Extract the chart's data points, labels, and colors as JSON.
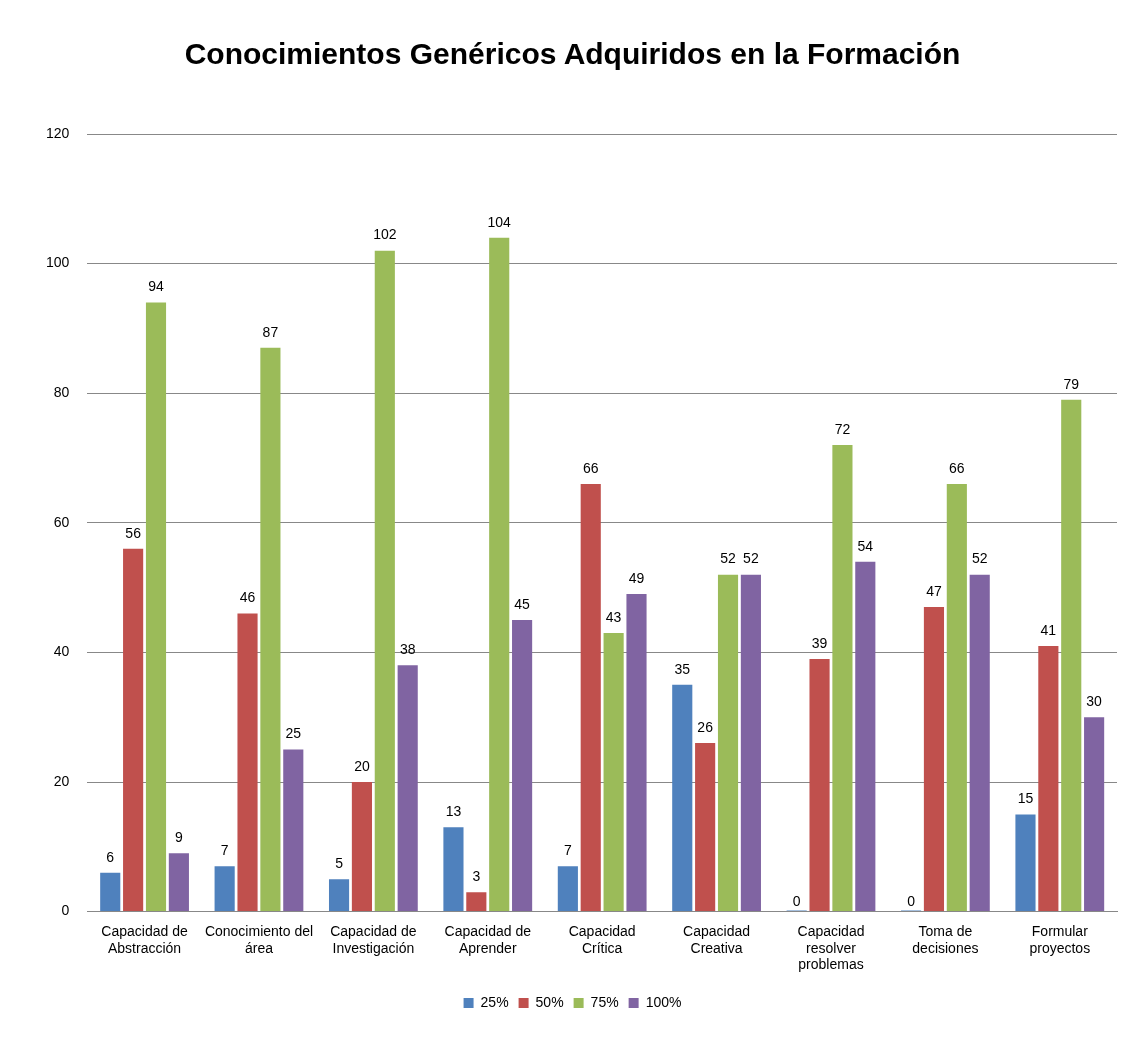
{
  "chart_data": {
    "type": "bar",
    "title": "Conocimientos Genéricos Adquiridos en la Formación",
    "categories": [
      "Capacidad de Abstracción",
      "Conocimiento del área",
      "Capacidad de Investigación",
      "Capacidad de Aprender",
      "Capacidad Crítica",
      "Capacidad Creativa",
      "Capacidad resolver problemas",
      "Toma de decisiones",
      "Formular proyectos"
    ],
    "series": [
      {
        "name": "25%",
        "color": "#4f81bd",
        "values": [
          6,
          7,
          5,
          13,
          7,
          35,
          0,
          0,
          15
        ]
      },
      {
        "name": "50%",
        "color": "#c0504d",
        "values": [
          56,
          46,
          20,
          3,
          66,
          26,
          39,
          47,
          41
        ]
      },
      {
        "name": "75%",
        "color": "#9bbb59",
        "values": [
          94,
          87,
          102,
          104,
          43,
          52,
          72,
          66,
          79
        ]
      },
      {
        "name": "100%",
        "color": "#8064a2",
        "values": [
          9,
          25,
          38,
          45,
          49,
          52,
          54,
          52,
          30
        ]
      }
    ],
    "ylim": [
      0,
      120
    ],
    "yticks": [
      0,
      20,
      40,
      60,
      80,
      100,
      120
    ],
    "grid": "y",
    "legend": "bottom",
    "data_labels": true
  }
}
